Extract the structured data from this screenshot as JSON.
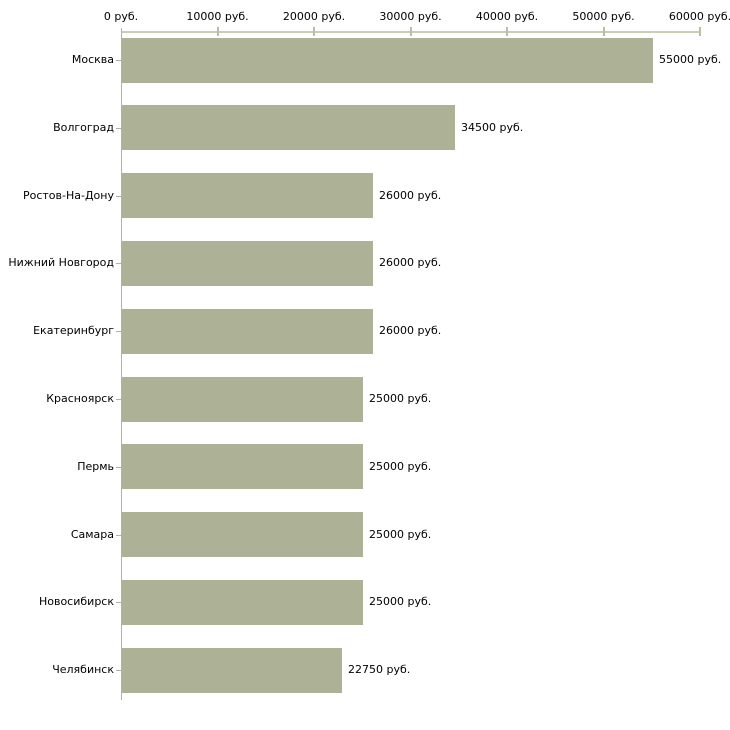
{
  "chart_data": {
    "type": "bar",
    "orientation": "horizontal",
    "title": "",
    "categories": [
      "Москва",
      "Волгоград",
      "Ростов-На-Дону",
      "Нижний Новгород",
      "Екатеринбург",
      "Красноярск",
      "Пермь",
      "Самара",
      "Новосибирск",
      "Челябинск"
    ],
    "values": [
      55000,
      34500,
      26000,
      26000,
      26000,
      25000,
      25000,
      25000,
      25000,
      22750
    ],
    "value_labels": [
      "55000 руб.",
      "34500 руб.",
      "26000 руб.",
      "26000 руб.",
      "26000 руб.",
      "25000 руб.",
      "25000 руб.",
      "25000 руб.",
      "25000 руб.",
      "22750 руб."
    ],
    "x_ticks": [
      0,
      10000,
      20000,
      30000,
      40000,
      50000,
      60000
    ],
    "x_tick_labels": [
      "0 руб.",
      "10000 руб.",
      "20000 руб.",
      "30000 руб.",
      "40000 руб.",
      "50000 руб.",
      "60000 руб."
    ],
    "xlim": [
      0,
      60000
    ],
    "unit": "руб.",
    "xlabel": "",
    "ylabel": "",
    "grid": false,
    "legend": null,
    "colors": {
      "bar_fill": "#adb297",
      "x_axis_line": "#cbcdb6",
      "x_tick_mark": "#b9bda1",
      "y_axis_line": "#b0b0b0",
      "category_tick": "#b0b0a6",
      "text": "#000000",
      "background": "#ffffff"
    }
  }
}
